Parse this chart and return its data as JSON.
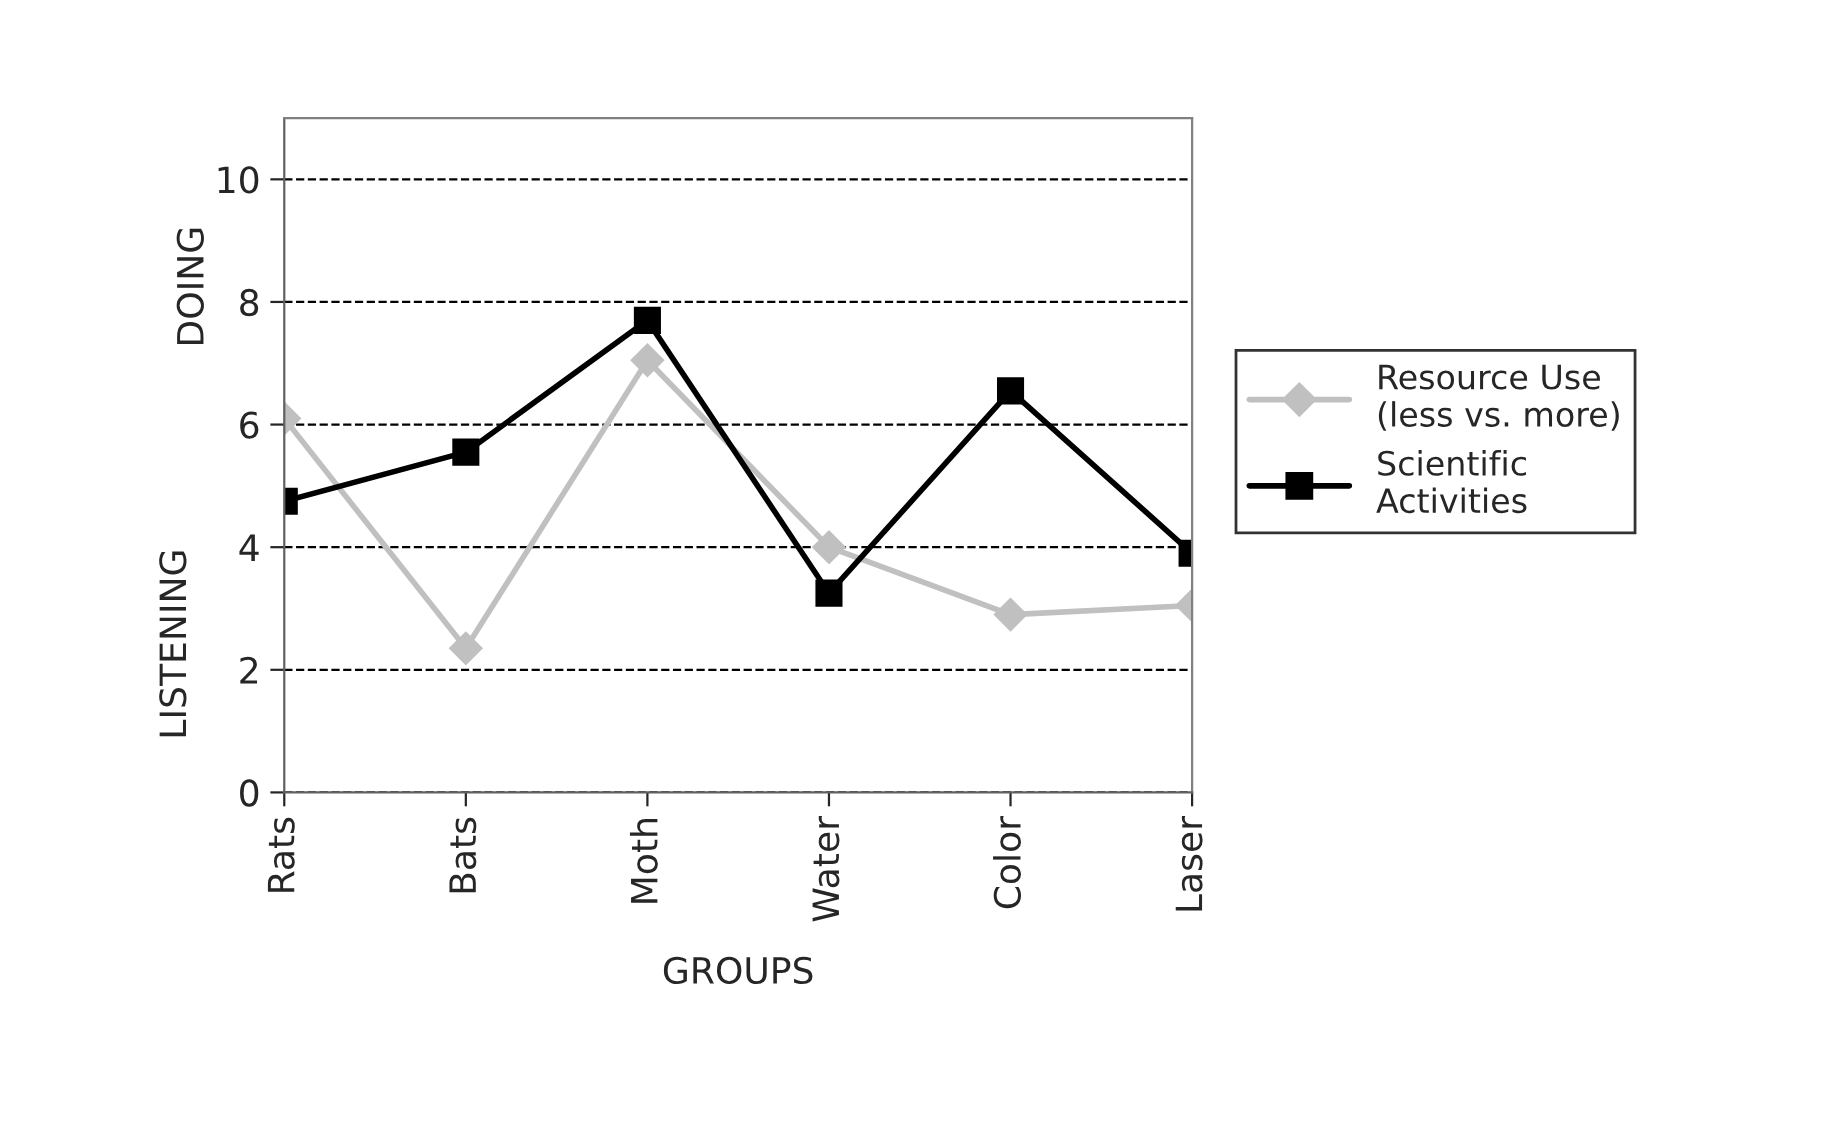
{
  "chart_data": {
    "type": "line",
    "categories": [
      "Rats",
      "Bats",
      "Moth",
      "Water",
      "Color",
      "Laser"
    ],
    "xlabel": "GROUPS",
    "ylabel": "LISTENING",
    "annotations": [
      "DOING"
    ],
    "series": [
      {
        "name": "Resource Use\n(less vs. more)",
        "color": "#c0c0c0",
        "marker": "diamond",
        "values": [
          6.1,
          2.35,
          7.05,
          4.0,
          2.9,
          3.05
        ]
      },
      {
        "name": "Scientific\nActivities",
        "color": "#000000",
        "marker": "square",
        "values": [
          4.75,
          5.55,
          7.7,
          3.25,
          6.55,
          3.9
        ]
      }
    ],
    "ylim": [
      0,
      11
    ],
    "yticks": [
      0,
      2,
      4,
      6,
      8,
      10
    ],
    "grid": "y",
    "legend": "right",
    "line_style": "solid"
  }
}
